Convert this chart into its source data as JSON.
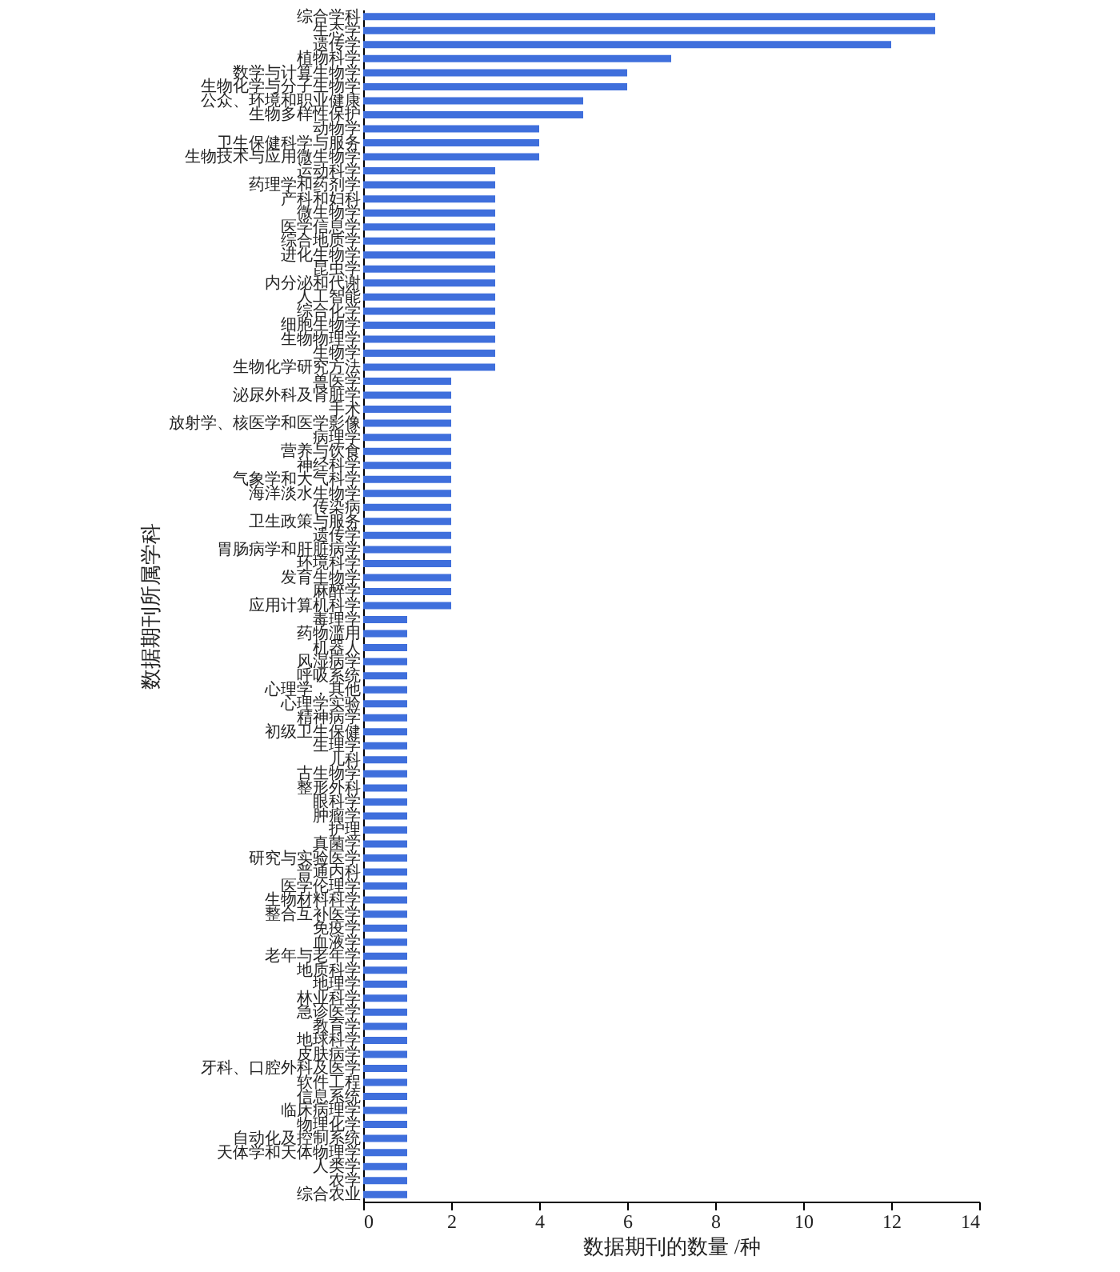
{
  "chart_data": {
    "type": "bar",
    "orientation": "horizontal",
    "xlabel": "数据期刊的数量 /种",
    "ylabel": "数据期刊所属学科",
    "categories": [
      "综合学科",
      "生态学",
      "遗传学",
      "植物科学",
      "数学与计算生物学",
      "生物化学与分子生物学",
      "公众、环境和职业健康",
      "生物多样性保护",
      "动物学",
      "卫生保健科学与服务",
      "生物技术与应用微生物学",
      "运动科学",
      "药理学和药剂学",
      "产科和妇科",
      "微生物学",
      "医学信息学",
      "综合地质学",
      "进化生物学",
      "昆虫学",
      "内分泌和代谢",
      "人工智能",
      "综合化学",
      "细胞生物学",
      "生物物理学",
      "生物学",
      "生物化学研究方法",
      "兽医学",
      "泌尿外科及肾脏学",
      "手术",
      "放射学、核医学和医学影像",
      "病理学",
      "营养与饮食",
      "神经科学",
      "气象学和大气科学",
      "海洋淡水生物学",
      "传染病",
      "卫生政策与服务",
      "遗传学",
      "胃肠病学和肝脏病学",
      "环境科学",
      "发育生物学",
      "麻醉学",
      "应用计算机科学",
      "毒理学",
      "药物滥用",
      "机器人",
      "风湿病学",
      "呼吸系统",
      "心理学，其他",
      "心理学实验",
      "精神病学",
      "初级卫生保健",
      "生理学",
      "儿科",
      "古生物学",
      "整形外科",
      "眼科学",
      "肿瘤学",
      "护理",
      "真菌学",
      "研究与实验医学",
      "普通内科",
      "医学伦理学",
      "生物材料科学",
      "整合互补医学",
      "免疫学",
      "血液学",
      "老年与老年学",
      "地质科学",
      "地理学",
      "林业科学",
      "急诊医学",
      "教育学",
      "地球科学",
      "皮肤病学",
      "牙科、口腔外科及医学",
      "软件工程",
      "信息系统",
      "临床病理学",
      "物理化学",
      "自动化及控制系统",
      "天体学和天体物理学",
      "人类学",
      "农学",
      "综合农业"
    ],
    "values": [
      13,
      13,
      12,
      7,
      6,
      6,
      5,
      5,
      4,
      4,
      4,
      3,
      3,
      3,
      3,
      3,
      3,
      3,
      3,
      3,
      3,
      3,
      3,
      3,
      3,
      3,
      2,
      2,
      2,
      2,
      2,
      2,
      2,
      2,
      2,
      2,
      2,
      2,
      2,
      2,
      2,
      2,
      2,
      1,
      1,
      1,
      1,
      1,
      1,
      1,
      1,
      1,
      1,
      1,
      1,
      1,
      1,
      1,
      1,
      1,
      1,
      1,
      1,
      1,
      1,
      1,
      1,
      1,
      1,
      1,
      1,
      1,
      1,
      1,
      1,
      1,
      1,
      1,
      1,
      1,
      1,
      1,
      1,
      1,
      1
    ],
    "color": "#3f6fdc",
    "xlim": [
      0,
      14
    ],
    "xticks": [
      0,
      2,
      4,
      6,
      8,
      10,
      12,
      14
    ],
    "grid": false
  }
}
